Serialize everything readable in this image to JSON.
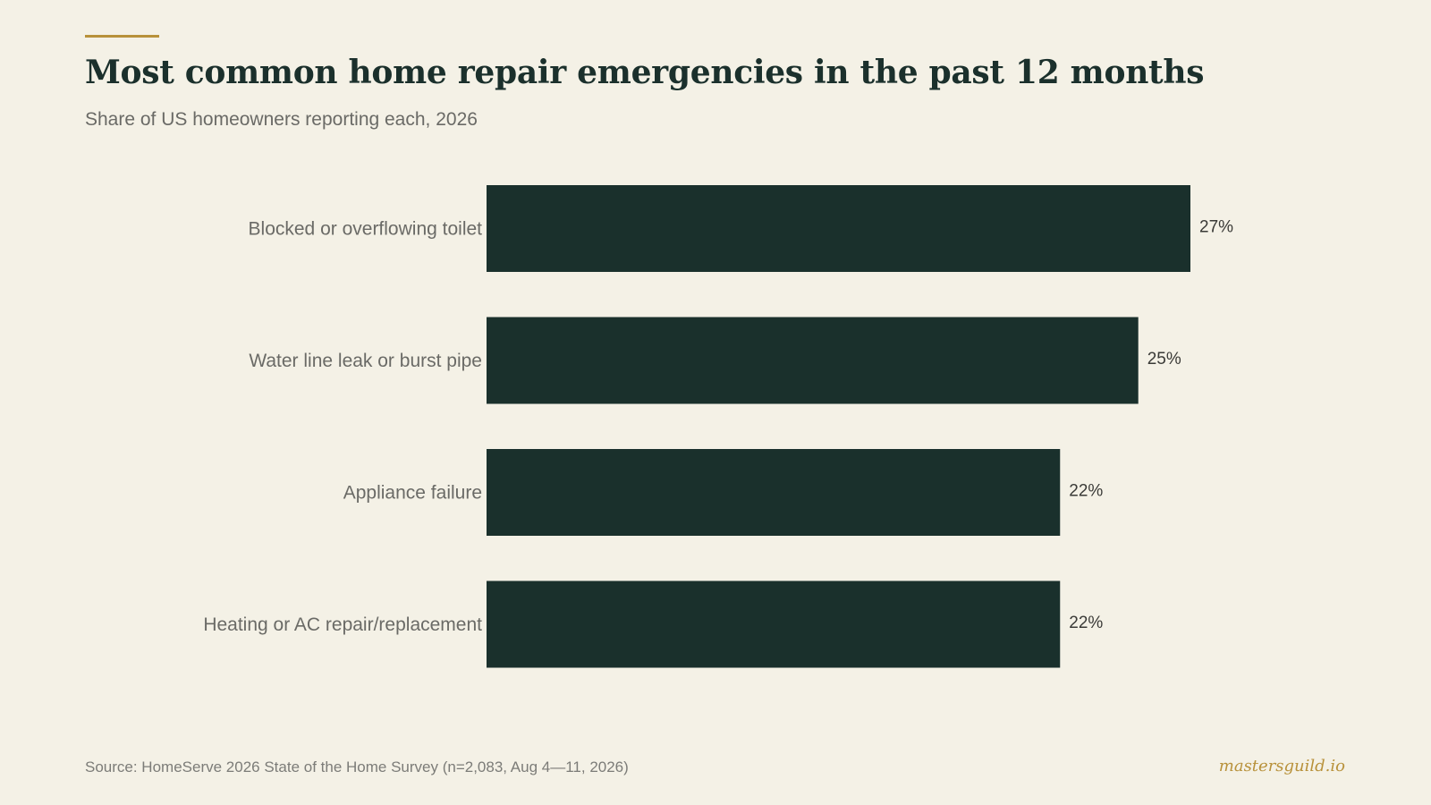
{
  "header": {
    "title": "Most common home repair emergencies in the past 12 months",
    "subtitle": "Share of US homeowners reporting each, 2026"
  },
  "chart_data": {
    "type": "bar",
    "orientation": "horizontal",
    "title": "Most common home repair emergencies in the past 12 months",
    "subtitle": "Share of US homeowners reporting each, 2026",
    "categories": [
      "Blocked or overflowing toilet",
      "Water line leak or burst pipe",
      "Appliance failure",
      "Heating or AC repair/replacement"
    ],
    "values": [
      27,
      25,
      22,
      22
    ],
    "value_labels": [
      "27%",
      "25%",
      "22%",
      "22%"
    ],
    "unit": "%",
    "xlim": [
      0,
      27
    ],
    "grid": false,
    "legend": "none",
    "bar_color": "#1a302c"
  },
  "footer": {
    "source": "Source: HomeServe 2026 State of the Home Survey (n=2,083, Aug 4—11, 2026)",
    "brand": "mastersguild.io"
  },
  "colors": {
    "background": "#f4f1e6",
    "accent": "#b8913a",
    "bar": "#1a302c",
    "title": "#1b302c",
    "category_label": "#6a6a66",
    "value_label": "#3a3a37"
  }
}
